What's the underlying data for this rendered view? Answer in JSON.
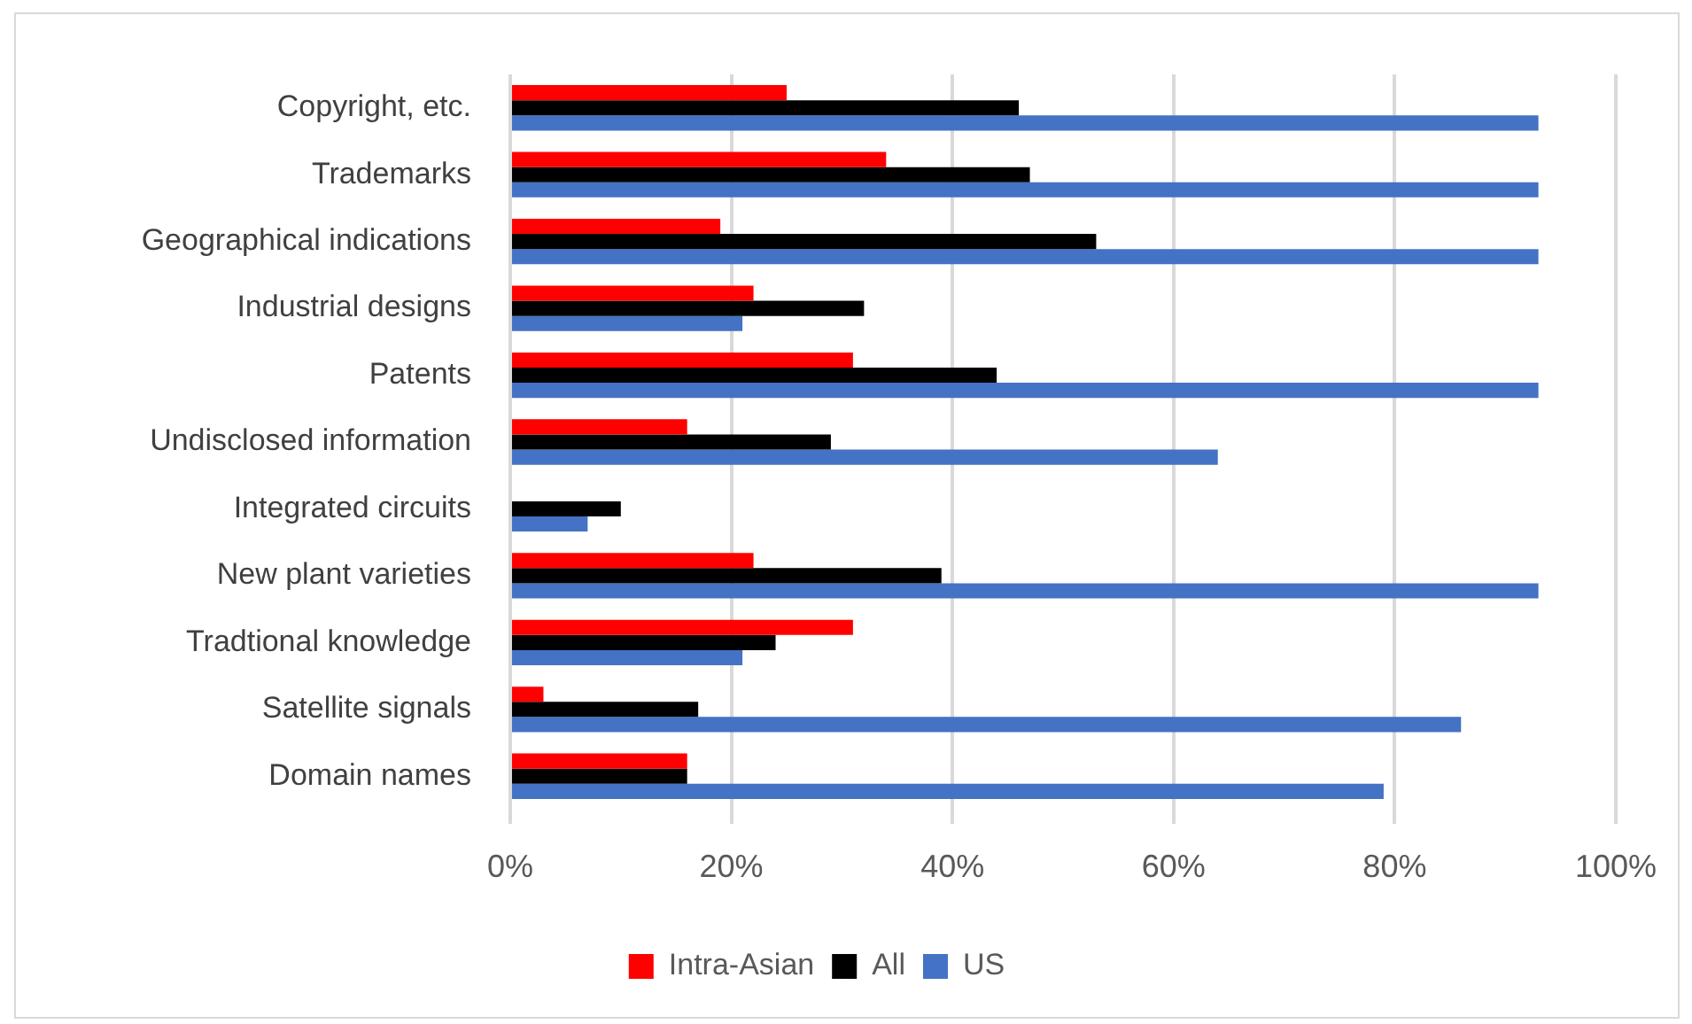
{
  "chart_data": {
    "type": "bar",
    "orientation": "horizontal",
    "categories": [
      "Copyright, etc.",
      "Trademarks",
      "Geographical indications",
      "Industrial designs",
      "Patents",
      "Undisclosed information",
      "Integrated circuits",
      "New plant varieties",
      "Tradtional knowledge",
      "Satellite signals",
      "Domain names"
    ],
    "series": [
      {
        "name": "Intra-Asian",
        "color": "#ff0000",
        "values": [
          25,
          34,
          19,
          22,
          31,
          16,
          null,
          22,
          31,
          3,
          16
        ]
      },
      {
        "name": "All",
        "color": "#000000",
        "values": [
          46,
          47,
          53,
          32,
          44,
          29,
          10,
          39,
          24,
          17,
          16
        ]
      },
      {
        "name": "US",
        "color": "#4472c4",
        "values": [
          93,
          93,
          93,
          21,
          93,
          64,
          7,
          93,
          21,
          86,
          79
        ]
      }
    ],
    "xlim": [
      0,
      100
    ],
    "xticks": [
      {
        "value": 0,
        "label": "0%"
      },
      {
        "value": 20,
        "label": "20%"
      },
      {
        "value": 40,
        "label": "40%"
      },
      {
        "value": 60,
        "label": "60%"
      },
      {
        "value": 80,
        "label": "80%"
      },
      {
        "value": 100,
        "label": "100%"
      }
    ],
    "grid": "x",
    "legend": "bottom"
  }
}
